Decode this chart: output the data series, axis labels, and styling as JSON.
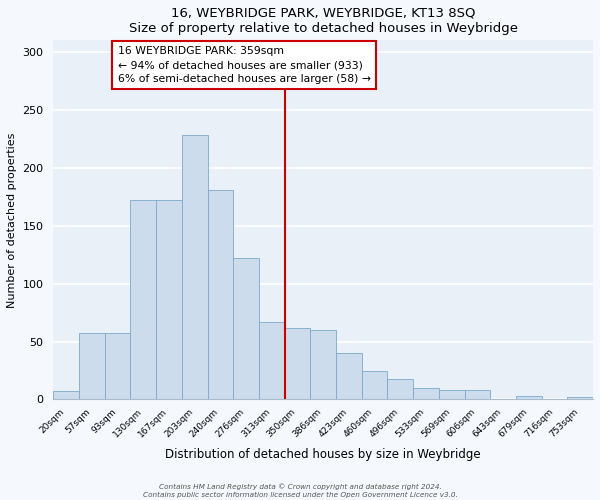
{
  "title": "16, WEYBRIDGE PARK, WEYBRIDGE, KT13 8SQ",
  "subtitle": "Size of property relative to detached houses in Weybridge",
  "xlabel": "Distribution of detached houses by size in Weybridge",
  "ylabel": "Number of detached properties",
  "bar_values": [
    7,
    57,
    57,
    172,
    172,
    228,
    181,
    122,
    67,
    62,
    60,
    40,
    25,
    18,
    10,
    8,
    8,
    0,
    3,
    0,
    2
  ],
  "bin_labels": [
    "20sqm",
    "57sqm",
    "93sqm",
    "130sqm",
    "167sqm",
    "203sqm",
    "240sqm",
    "276sqm",
    "313sqm",
    "350sqm",
    "386sqm",
    "423sqm",
    "460sqm",
    "496sqm",
    "533sqm",
    "569sqm",
    "606sqm",
    "643sqm",
    "679sqm",
    "716sqm",
    "753sqm"
  ],
  "bar_color": "#ccdcec",
  "bar_edge_color": "#7aaaca",
  "vline_x": 9.0,
  "vline_color": "#cc0000",
  "annotation_title": "16 WEYBRIDGE PARK: 359sqm",
  "annotation_line1": "← 94% of detached houses are smaller (933)",
  "annotation_line2": "6% of semi-detached houses are larger (58) →",
  "annotation_box_facecolor": "white",
  "annotation_box_edgecolor": "#cc0000",
  "ylim": [
    0,
    310
  ],
  "yticks": [
    0,
    50,
    100,
    150,
    200,
    250,
    300
  ],
  "grid_color": "#d0dce8",
  "bg_color": "#eaf0f8",
  "fig_bg_color": "#f5f8fc",
  "footer1": "Contains HM Land Registry data © Crown copyright and database right 2024.",
  "footer2": "Contains public sector information licensed under the Open Government Licence v3.0."
}
